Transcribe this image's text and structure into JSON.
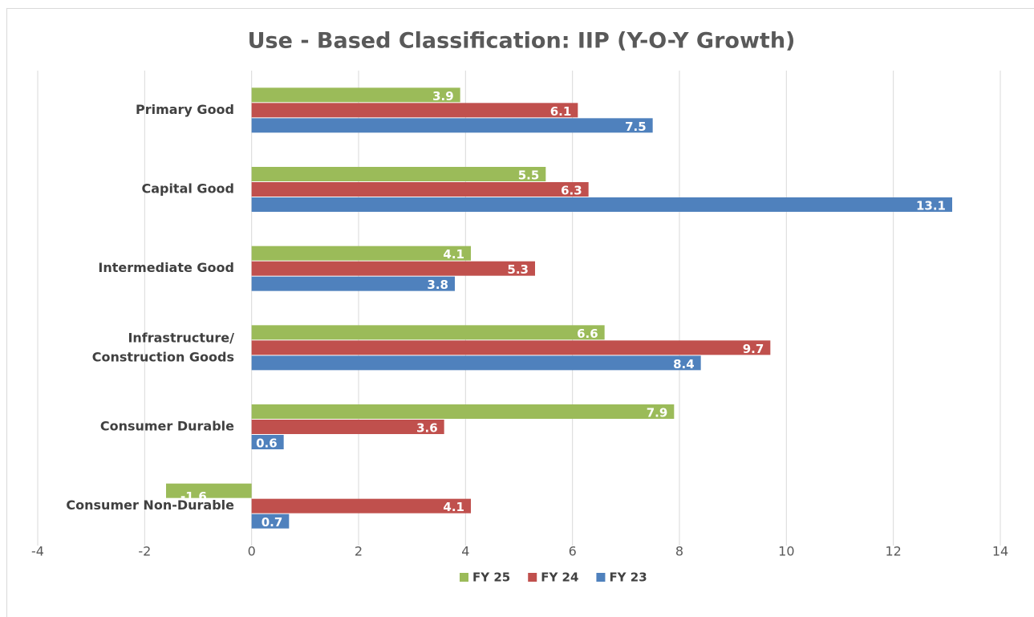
{
  "chart_data": {
    "type": "barh",
    "title": "Use - Based Classification: IIP (Y-O-Y Growth)",
    "categories": [
      "Primary Good",
      "Capital Good",
      "Intermediate Good",
      "Infrastructure/ Construction Goods",
      "Consumer Durable",
      "Consumer Non-Durable"
    ],
    "series": [
      {
        "name": "FY 25",
        "color": "#9bbb59",
        "values": [
          3.9,
          5.5,
          4.1,
          6.6,
          7.9,
          -1.6
        ]
      },
      {
        "name": "FY 24",
        "color": "#c0504d",
        "values": [
          6.1,
          6.3,
          5.3,
          9.7,
          3.6,
          4.1
        ]
      },
      {
        "name": "FY 23",
        "color": "#4f81bd",
        "values": [
          7.5,
          13.1,
          3.8,
          8.4,
          0.6,
          0.7
        ]
      }
    ],
    "xlim": [
      -4,
      14
    ],
    "xticks": [
      -4,
      -2,
      0,
      2,
      4,
      6,
      8,
      10,
      12,
      14
    ],
    "grid": true,
    "legend": "bottom"
  }
}
